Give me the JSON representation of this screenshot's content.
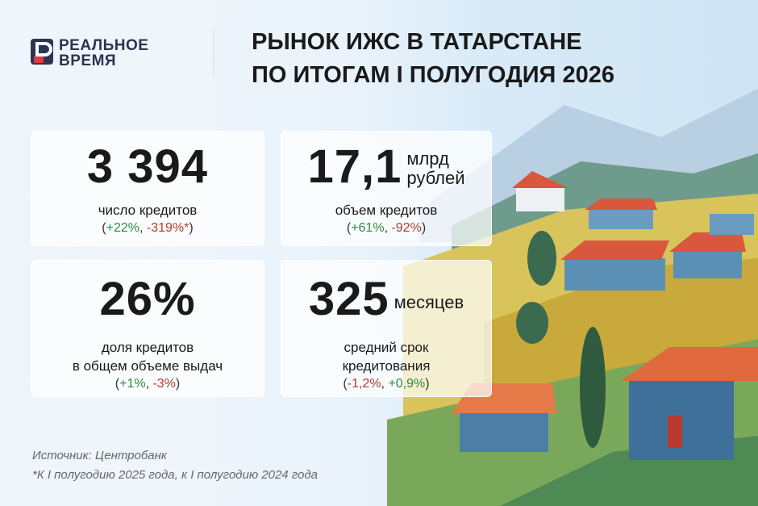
{
  "logo": {
    "line1": "РЕАЛЬНОЕ",
    "line2": "ВРЕМЯ"
  },
  "header": {
    "title_lines": [
      "РЫНОК ИЖС В ТАТАРСТАНЕ",
      "ПО ИТОГАМ I ПОЛУГОДИЯ 2026"
    ]
  },
  "cards": [
    {
      "value": "3 394",
      "unit": [],
      "label": [
        "число кредитов"
      ],
      "changes": [
        {
          "text": "(",
          "color": "#333333"
        },
        {
          "text": "+22%",
          "color": "#2e8b3e"
        },
        {
          "text": ", ",
          "color": "#333333"
        },
        {
          "text": "-319%*",
          "color": "#b83a2a"
        },
        {
          "text": ")",
          "color": "#333333"
        }
      ]
    },
    {
      "value": "17,1",
      "unit": [
        "млрд",
        "рублей"
      ],
      "label": [
        "объем кредитов"
      ],
      "changes": [
        {
          "text": "(",
          "color": "#333333"
        },
        {
          "text": "+61%",
          "color": "#2e8b3e"
        },
        {
          "text": ", ",
          "color": "#333333"
        },
        {
          "text": "-92%",
          "color": "#b83a2a"
        },
        {
          "text": ")",
          "color": "#333333"
        }
      ]
    },
    {
      "value": "26%",
      "unit": [],
      "label": [
        "доля кредитов",
        "в общем объеме выдач"
      ],
      "changes": [
        {
          "text": "(",
          "color": "#333333"
        },
        {
          "text": "+1%",
          "color": "#2e8b3e"
        },
        {
          "text": ", ",
          "color": "#333333"
        },
        {
          "text": "-3%",
          "color": "#b83a2a"
        },
        {
          "text": ")",
          "color": "#333333"
        }
      ]
    },
    {
      "value": "325",
      "unit": [
        "месяцев"
      ],
      "label": [
        "средний срок",
        "кредитования"
      ],
      "changes": [
        {
          "text": "(",
          "color": "#333333"
        },
        {
          "text": "-1,2%",
          "color": "#b83a2a"
        },
        {
          "text": ", ",
          "color": "#333333"
        },
        {
          "text": "+0,9%",
          "color": "#2e8b3e"
        },
        {
          "text": ")",
          "color": "#333333"
        }
      ]
    }
  ],
  "footer": {
    "source": "Источник: Центробанк",
    "note": "*К I полугодию 2025 года, к I полугодию 2024 года"
  }
}
